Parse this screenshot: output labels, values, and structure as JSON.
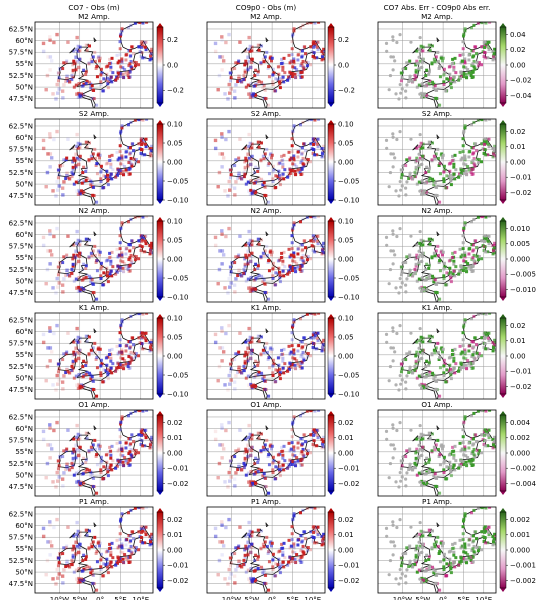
{
  "figure": {
    "column_headers": [
      "CO7 - Obs (m)",
      "CO9p0 - Obs (m)",
      "CO7 Abs. Err - CO9p0 Abs err."
    ],
    "lat_ticks": [
      "62.5°N",
      "60°N",
      "57.5°N",
      "55°N",
      "52.5°N",
      "50°N",
      "47.5°N"
    ],
    "lon_ticks": [
      "10°W",
      "5°W",
      "0°",
      "5°E",
      "10°E"
    ]
  },
  "chart_data": [
    {
      "type": "heatmap",
      "title": "M2 Amp.",
      "colorbars": [
        {
          "ticks": [
            "0.2",
            "0.0",
            "−0.2"
          ],
          "range": [
            -0.3,
            0.3
          ],
          "cmap": "bwr"
        },
        {
          "ticks": [
            "0.2",
            "0.0",
            "−0.2"
          ],
          "range": [
            -0.3,
            0.3
          ],
          "cmap": "bwr"
        },
        {
          "ticks": [
            "0.04",
            "0.02",
            "0.00",
            "−0.02",
            "−0.04"
          ],
          "range": [
            -0.05,
            0.05
          ],
          "cmap": "PiYG"
        }
      ]
    },
    {
      "type": "heatmap",
      "title": "S2 Amp.",
      "colorbars": [
        {
          "ticks": [
            "0.10",
            "0.05",
            "0.00",
            "−0.05",
            "−0.10"
          ],
          "range": [
            -0.1,
            0.1
          ],
          "cmap": "bwr"
        },
        {
          "ticks": [
            "0.10",
            "0.05",
            "0.00",
            "−0.05",
            "−0.10"
          ],
          "range": [
            -0.1,
            0.1
          ],
          "cmap": "bwr"
        },
        {
          "ticks": [
            "0.02",
            "0.01",
            "0.00",
            "−0.01",
            "−0.02"
          ],
          "range": [
            -0.025,
            0.025
          ],
          "cmap": "PiYG"
        }
      ]
    },
    {
      "type": "heatmap",
      "title": "N2 Amp.",
      "colorbars": [
        {
          "ticks": [
            "0.10",
            "0.05",
            "0.00",
            "−0.05",
            "−0.10"
          ],
          "range": [
            -0.1,
            0.1
          ],
          "cmap": "bwr"
        },
        {
          "ticks": [
            "0.10",
            "0.05",
            "0.00",
            "−0.05",
            "−0.10"
          ],
          "range": [
            -0.1,
            0.1
          ],
          "cmap": "bwr"
        },
        {
          "ticks": [
            "0.010",
            "0.005",
            "0.000",
            "−0.005",
            "−0.010"
          ],
          "range": [
            -0.0125,
            0.0125
          ],
          "cmap": "PiYG"
        }
      ]
    },
    {
      "type": "heatmap",
      "title": "K1 Amp.",
      "colorbars": [
        {
          "ticks": [
            "0.10",
            "0.05",
            "0.00",
            "−0.05",
            "−0.10"
          ],
          "range": [
            -0.1,
            0.1
          ],
          "cmap": "bwr"
        },
        {
          "ticks": [
            "0.10",
            "0.05",
            "0.00",
            "−0.05",
            "−0.10"
          ],
          "range": [
            -0.1,
            0.1
          ],
          "cmap": "bwr"
        },
        {
          "ticks": [
            "0.02",
            "0.01",
            "0.00",
            "−0.01",
            "−0.02"
          ],
          "range": [
            -0.025,
            0.025
          ],
          "cmap": "PiYG"
        }
      ]
    },
    {
      "type": "heatmap",
      "title": "O1 Amp.",
      "colorbars": [
        {
          "ticks": [
            "0.02",
            "0.01",
            "0.00",
            "−0.01",
            "−0.02"
          ],
          "range": [
            -0.025,
            0.025
          ],
          "cmap": "bwr"
        },
        {
          "ticks": [
            "0.02",
            "0.01",
            "0.00",
            "−0.01",
            "−0.02"
          ],
          "range": [
            -0.025,
            0.025
          ],
          "cmap": "bwr"
        },
        {
          "ticks": [
            "0.004",
            "0.002",
            "0.000",
            "−0.002",
            "−0.004"
          ],
          "range": [
            -0.005,
            0.005
          ],
          "cmap": "PiYG"
        }
      ]
    },
    {
      "type": "heatmap",
      "title": "P1 Amp.",
      "colorbars": [
        {
          "ticks": [
            "0.02",
            "0.01",
            "0.00",
            "−0.01",
            "−0.02"
          ],
          "range": [
            -0.025,
            0.025
          ],
          "cmap": "bwr"
        },
        {
          "ticks": [
            "0.02",
            "0.01",
            "0.00",
            "−0.01",
            "−0.02"
          ],
          "range": [
            -0.025,
            0.025
          ],
          "cmap": "bwr"
        },
        {
          "ticks": [
            "0.002",
            "0.001",
            "0.000",
            "−0.001",
            "−0.002"
          ],
          "range": [
            -0.0025,
            0.0025
          ],
          "cmap": "PiYG"
        }
      ]
    }
  ],
  "colors": {
    "positive": "#c81e1e",
    "negative": "#2a2ad0",
    "improved": "#3a9a2a",
    "worse": "#c01a7a",
    "neutral_marker": "#a8a8a8",
    "coast": "#111111",
    "grid": "#9a9a9a"
  }
}
